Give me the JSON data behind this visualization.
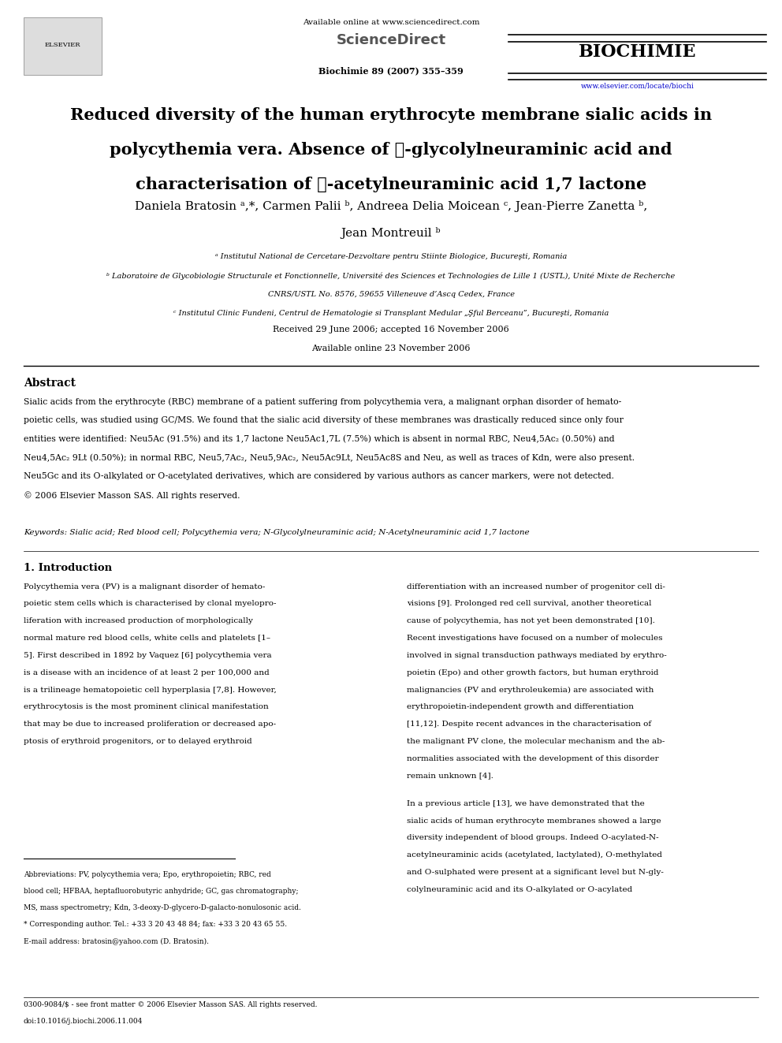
{
  "page_width": 9.92,
  "page_height": 13.23,
  "bg_color": "#ffffff",
  "journal_name": "BIOCHIMIE",
  "journal_url": "www.elsevier.com/locate/biochi",
  "sciencedirect_text": "Available online at www.sciencedirect.com",
  "sciencedirect_label": "ScienceDirect",
  "journal_issue": "Biochimie 89 (2007) 355–359",
  "title_line1": "Reduced diversity of the human erythrocyte membrane sialic acids in",
  "title_line2": "polycythemia vera. Absence of ℱ-glycolylneuraminic acid and",
  "title_line3": "characterisation of ℱ-acetylneuraminic acid 1,7 lactone",
  "authors": "Daniela Bratosin ᵃ,*, Carmen Palii ᵇ, Andreea Delia Moicean ᶜ, Jean-Pierre Zanetta ᵇ,",
  "authors2": "Jean Montreuil ᵇ",
  "affil_a": "ᵃ Institutul National de Cercetare-Dezvoltare pentru Stiinte Biologice, Bucureşti, Romania",
  "affil_b": "ᵇ Laboratoire de Glycobiologie Structurale et Fonctionnelle, Université des Sciences et Technologies de Lille 1 (USTL), Unité Mixte de Recherche",
  "affil_b2": "CNRS/USTL No. 8576, 59655 Villeneuve d’Ascq Cedex, France",
  "affil_c": "ᶜ Institutul Clinic Fundeni, Centrul de Hematologie si Transplant Medular „Şful Berceanu”, Bucureşti, Romania",
  "received": "Received 29 June 2006; accepted 16 November 2006",
  "available": "Available online 23 November 2006",
  "abstract_title": "Abstract",
  "abstract_text": "Sialic acids from the erythrocyte (RBC) membrane of a patient suffering from polycythemia vera, a malignant orphan disorder of hemato-\npoietic cells, was studied using GC/MS. We found that the sialic acid diversity of these membranes was drastically reduced since only four\nentities were identified: Neu5Ac (91.5%) and its 1,7 lactone Neu5Ac1,7L (7.5%) which is absent in normal RBC, Neu4,5Ac₂ (0.50%) and\nNeu4,5Ac₂ 9Lt (0.50%); in normal RBC, Neu5,7Ac₂, Neu5,9Ac₂, Neu5Ac9Lt, Neu5Ac8S and Neu, as well as traces of Kdn, were also present.\nNeu5Gc and its O-alkylated or O-acetylated derivatives, which are considered by various authors as cancer markers, were not detected.\n© 2006 Elsevier Masson SAS. All rights reserved.",
  "keywords_text": "Keywords: Sialic acid; Red blood cell; Polycythemia vera; N-Glycolylneuraminic acid; N-Acetylneuraminic acid 1,7 lactone",
  "intro_title": "1. Introduction",
  "intro_col1": "Polycythemia vera (PV) is a malignant disorder of hemato-\npoietic stem cells which is characterised by clonal myelopro-\nliferation with increased production of morphologically\nnormal mature red blood cells, white cells and platelets [1–\n5]. First described in 1892 by Vaquez [6] polycythemia vera\nis a disease with an incidence of at least 2 per 100,000 and\nis a trilineage hematopoietic cell hyperplasia [7,8]. However,\nerythrocytosis is the most prominent clinical manifestation\nthat may be due to increased proliferation or decreased apo-\nptosis of erythroid progenitors, or to delayed erythroid",
  "intro_col2": "differentiation with an increased number of progenitor cell di-\nvisions [9]. Prolonged red cell survival, another theoretical\ncause of polycythemia, has not yet been demonstrated [10].\nRecent investigations have focused on a number of molecules\ninvolved in signal transduction pathways mediated by erythro-\npoietin (Epo) and other growth factors, but human erythroid\nmalignancies (PV and erythroleukemia) are associated with\nerythropoietin-independent growth and differentiation\n[11,12]. Despite recent advances in the characterisation of\nthe malignant PV clone, the molecular mechanism and the ab-\nnormalities associated with the development of this disorder\nremain unknown [4].",
  "intro_col2b": "In a previous article [13], we have demonstrated that the\nsialic acids of human erythrocyte membranes showed a large\ndiversity independent of blood groups. Indeed O-acylated-N-\nacetylneuraminic acids (acetylated, lactylated), O-methylated\nand O-sulphated were present at a significant level but N-gly-\ncolylneuraminic acid and its O-alkylated or O-acylated",
  "footnote_abbrev": "Abbreviations: PV, polycythemia vera; Epo, erythropoietin; RBC, red\nblood cell; HFBAA, heptafluorobutyric anhydride; GC, gas chromatography;\nMS, mass spectrometry; Kdn, 3-deoxy-D-glycero-D-galacto-nonulosonic acid.",
  "footnote_corresp": "* Corresponding author. Tel.: +33 3 20 43 48 84; fax: +33 3 20 43 65 55.",
  "footnote_email": "E-mail address: bratosin@yahoo.com (D. Bratosin).",
  "footer_text": "0300-9084/$ - see front matter © 2006 Elsevier Masson SAS. All rights reserved.",
  "footer_doi": "doi:10.1016/j.biochi.2006.11.004",
  "text_color": "#000000",
  "blue_color": "#0000cc",
  "gray_color": "#888888"
}
